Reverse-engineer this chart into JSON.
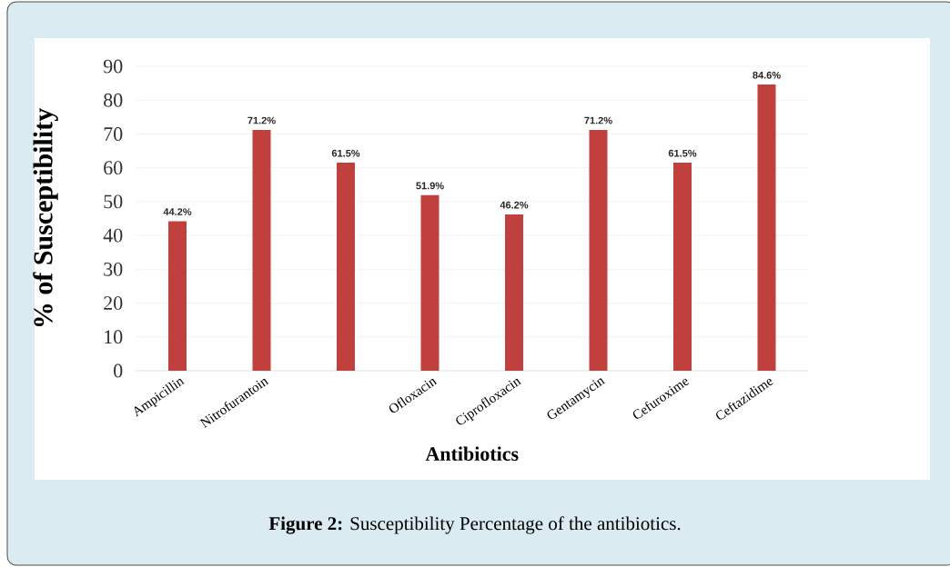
{
  "chart_data": {
    "type": "bar",
    "xlabel": "Antibiotics",
    "ylabel": "% of Susceptibility",
    "categories": [
      "Ampicillin",
      "Nitrofurantoin",
      null,
      "Ofloxacin",
      "Ciprofloxacin",
      "Gentamycin",
      "Cefuroxime",
      "Ceftazidime"
    ],
    "values": [
      44.2,
      71.2,
      61.5,
      51.9,
      46.2,
      71.2,
      61.5,
      84.6
    ],
    "value_labels": [
      "44.2%",
      "71.2%",
      "61.5%",
      "51.9%",
      "46.2%",
      "71.2%",
      "61.5%",
      "84.6%"
    ],
    "color": "#c0403d",
    "ylim": [
      0,
      90
    ],
    "yticks": [
      0,
      10,
      20,
      30,
      40,
      50,
      60,
      70,
      80,
      90
    ],
    "grid": "y",
    "annotations": [
      "**Figure 2:** Susceptibility Percentage of the antibiotics."
    ]
  }
}
